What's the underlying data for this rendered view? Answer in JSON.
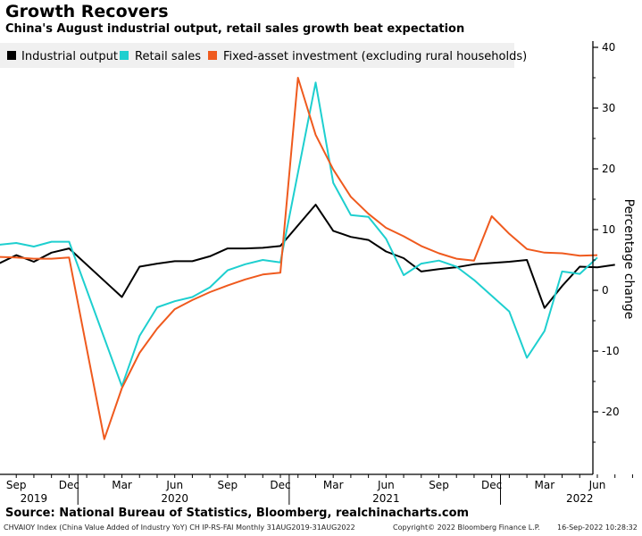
{
  "header": {
    "title": "Growth Recovers",
    "subtitle": "China's August industrial output, retail sales growth beat expectation"
  },
  "footer": {
    "source": "Source: National Bureau of Statistics, Bloomberg, realchinacharts.com",
    "ticker": "CHVAIOY Index (China Value Added of Industry YoY) CH IP-RS-FAI  Monthly 31AUG2019-31AUG2022",
    "copyright": "Copyright© 2022 Bloomberg Finance L.P.",
    "timestamp": "16-Sep-2022 10:28:32"
  },
  "colors": {
    "industrial": "#000000",
    "retail": "#1ecfcf",
    "fai": "#ef5a1e",
    "legend_bg": "#f0f0f0"
  },
  "chart_data": {
    "type": "line",
    "title": "Growth Recovers",
    "subtitle": "China's August industrial output, retail sales growth beat expectation",
    "ylabel": "Percentage change",
    "ylim": [
      -30,
      40
    ],
    "yticks": [
      40,
      30,
      20,
      10,
      0,
      -10,
      -20
    ],
    "grid": false,
    "legend_position": "top-left",
    "x": [
      "2019-08",
      "2019-09",
      "2019-10",
      "2019-11",
      "2019-12",
      "2020-01",
      "2020-02",
      "2020-03",
      "2020-04",
      "2020-05",
      "2020-06",
      "2020-07",
      "2020-08",
      "2020-09",
      "2020-10",
      "2020-11",
      "2020-12",
      "2021-01",
      "2021-02",
      "2021-03",
      "2021-04",
      "2021-05",
      "2021-06",
      "2021-07",
      "2021-08",
      "2021-09",
      "2021-10",
      "2021-11",
      "2021-12",
      "2022-01",
      "2022-02",
      "2022-03",
      "2022-04",
      "2022-05",
      "2022-06",
      "2022-07",
      "2022-08"
    ],
    "x_tick_labels": [
      {
        "at": "2019-09",
        "label": "Sep"
      },
      {
        "at": "2019-12",
        "label": "Dec"
      },
      {
        "at": "2020-03",
        "label": "Mar"
      },
      {
        "at": "2020-06",
        "label": "Jun"
      },
      {
        "at": "2020-09",
        "label": "Sep"
      },
      {
        "at": "2020-12",
        "label": "Dec"
      },
      {
        "at": "2021-03",
        "label": "Mar"
      },
      {
        "at": "2021-06",
        "label": "Jun"
      },
      {
        "at": "2021-09",
        "label": "Sep"
      },
      {
        "at": "2021-12",
        "label": "Dec"
      },
      {
        "at": "2022-03",
        "label": "Mar"
      },
      {
        "at": "2022-06",
        "label": "Jun"
      }
    ],
    "year_labels": [
      {
        "at": "2019-10",
        "label": "2019"
      },
      {
        "at": "2020-06",
        "label": "2020"
      },
      {
        "at": "2021-06",
        "label": "2021"
      },
      {
        "at": "2022-05",
        "label": "2022"
      }
    ],
    "year_dividers": [
      "2019-12",
      "2020-12",
      "2021-12"
    ],
    "series": [
      {
        "name": "Industrial output",
        "color": "#000000",
        "values": [
          4.4,
          5.8,
          4.7,
          6.2,
          6.9,
          null,
          null,
          -1.1,
          3.9,
          4.4,
          4.8,
          4.8,
          5.6,
          6.9,
          6.9,
          7.0,
          7.3,
          null,
          14.1,
          9.8,
          8.8,
          8.3,
          6.4,
          5.3,
          3.1,
          3.5,
          3.8,
          4.3,
          null,
          4.7,
          5.0,
          -2.9,
          0.7,
          3.9,
          3.8,
          4.2,
          null
        ]
      },
      {
        "name": "Retail sales",
        "color": "#1ecfcf",
        "values": [
          7.5,
          7.8,
          7.2,
          8.0,
          8.0,
          null,
          null,
          -15.8,
          -7.5,
          -2.8,
          -1.8,
          -1.1,
          0.5,
          3.3,
          4.3,
          5.0,
          4.6,
          null,
          34.2,
          17.7,
          12.4,
          12.1,
          8.5,
          2.5,
          4.4,
          4.9,
          3.9,
          1.7,
          null,
          -3.5,
          -11.1,
          -6.7,
          3.1,
          2.7,
          5.4,
          null,
          null
        ]
      },
      {
        "name": "Fixed-asset investment (excluding rural households)",
        "color": "#ef5a1e",
        "values": [
          5.5,
          5.4,
          5.2,
          5.2,
          5.4,
          null,
          -24.5,
          -16.1,
          -10.3,
          -6.3,
          -3.1,
          -1.6,
          -0.3,
          0.8,
          1.8,
          2.6,
          2.9,
          35.0,
          25.6,
          19.9,
          15.4,
          12.6,
          10.3,
          8.9,
          7.3,
          6.1,
          5.2,
          4.9,
          12.2,
          9.3,
          6.8,
          6.2,
          6.1,
          5.7,
          5.8,
          null,
          null
        ]
      }
    ]
  }
}
